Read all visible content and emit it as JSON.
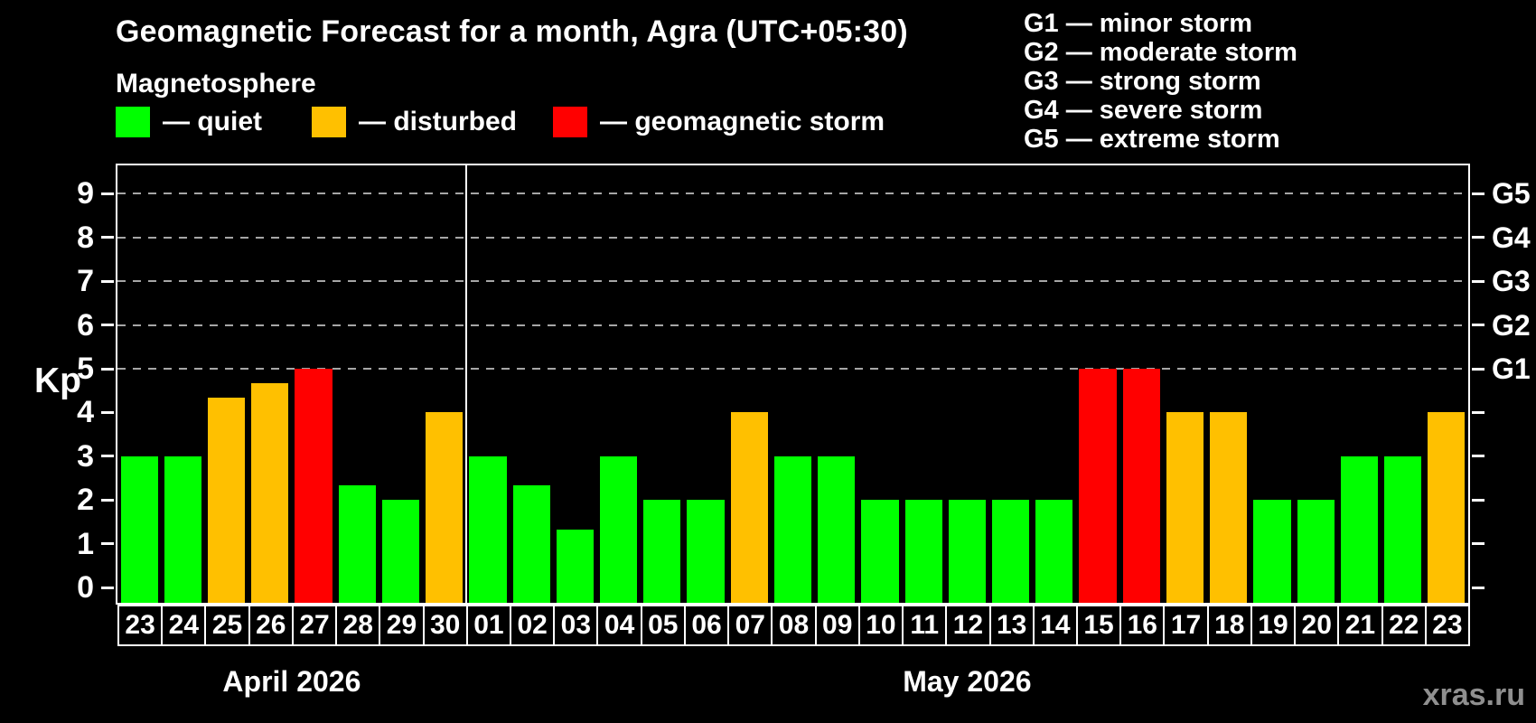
{
  "title": "Geomagnetic Forecast for a month, Agra (UTC+05:30)",
  "subtitle": "Magnetosphere",
  "legend": {
    "quiet": {
      "label": "— quiet",
      "color": "#00ff00"
    },
    "disturbed": {
      "label": "— disturbed",
      "color": "#ffc000"
    },
    "storm": {
      "label": "— geomagnetic storm",
      "color": "#ff0000"
    }
  },
  "g_legend": [
    "G1 — minor storm",
    "G2 — moderate storm",
    "G3 — strong storm",
    "G4 — severe storm",
    "G5 — extreme storm"
  ],
  "status_colors": {
    "quiet": "#00ff00",
    "disturbed": "#ffc000",
    "storm": "#ff0000"
  },
  "watermark": "xras.ru",
  "chart_data": {
    "type": "bar",
    "title": "Geomagnetic Forecast for a month, Agra (UTC+05:30)",
    "ylabel": "Kp",
    "ylim": [
      0,
      9.4
    ],
    "yticks": [
      0,
      1,
      2,
      3,
      4,
      5,
      6,
      7,
      8,
      9
    ],
    "gridlines_at": [
      5,
      6,
      7,
      8,
      9
    ],
    "grid": "dashed",
    "legend_position": "top",
    "right_axis_labels": [
      {
        "kp": 5,
        "label": "G1"
      },
      {
        "kp": 6,
        "label": "G2"
      },
      {
        "kp": 7,
        "label": "G3"
      },
      {
        "kp": 8,
        "label": "G4"
      },
      {
        "kp": 9,
        "label": "G5"
      }
    ],
    "months": [
      {
        "label": "April 2026",
        "days": 8
      },
      {
        "label": "May 2026",
        "days": 23
      }
    ],
    "categories": [
      "23",
      "24",
      "25",
      "26",
      "27",
      "28",
      "29",
      "30",
      "01",
      "02",
      "03",
      "04",
      "05",
      "06",
      "07",
      "08",
      "09",
      "10",
      "11",
      "12",
      "13",
      "14",
      "15",
      "16",
      "17",
      "18",
      "19",
      "20",
      "21",
      "22",
      "23"
    ],
    "values": [
      3,
      3,
      4.33,
      4.67,
      5,
      2.33,
      2,
      4,
      3,
      2.33,
      1.33,
      3,
      2,
      2,
      4,
      3,
      3,
      2,
      2,
      2,
      2,
      2,
      5,
      5,
      4,
      4,
      2,
      2,
      3,
      3,
      4
    ],
    "statuses": [
      "quiet",
      "quiet",
      "disturbed",
      "disturbed",
      "storm",
      "quiet",
      "quiet",
      "disturbed",
      "quiet",
      "quiet",
      "quiet",
      "quiet",
      "quiet",
      "quiet",
      "disturbed",
      "quiet",
      "quiet",
      "quiet",
      "quiet",
      "quiet",
      "quiet",
      "quiet",
      "storm",
      "storm",
      "disturbed",
      "disturbed",
      "quiet",
      "quiet",
      "quiet",
      "quiet",
      "disturbed"
    ]
  }
}
